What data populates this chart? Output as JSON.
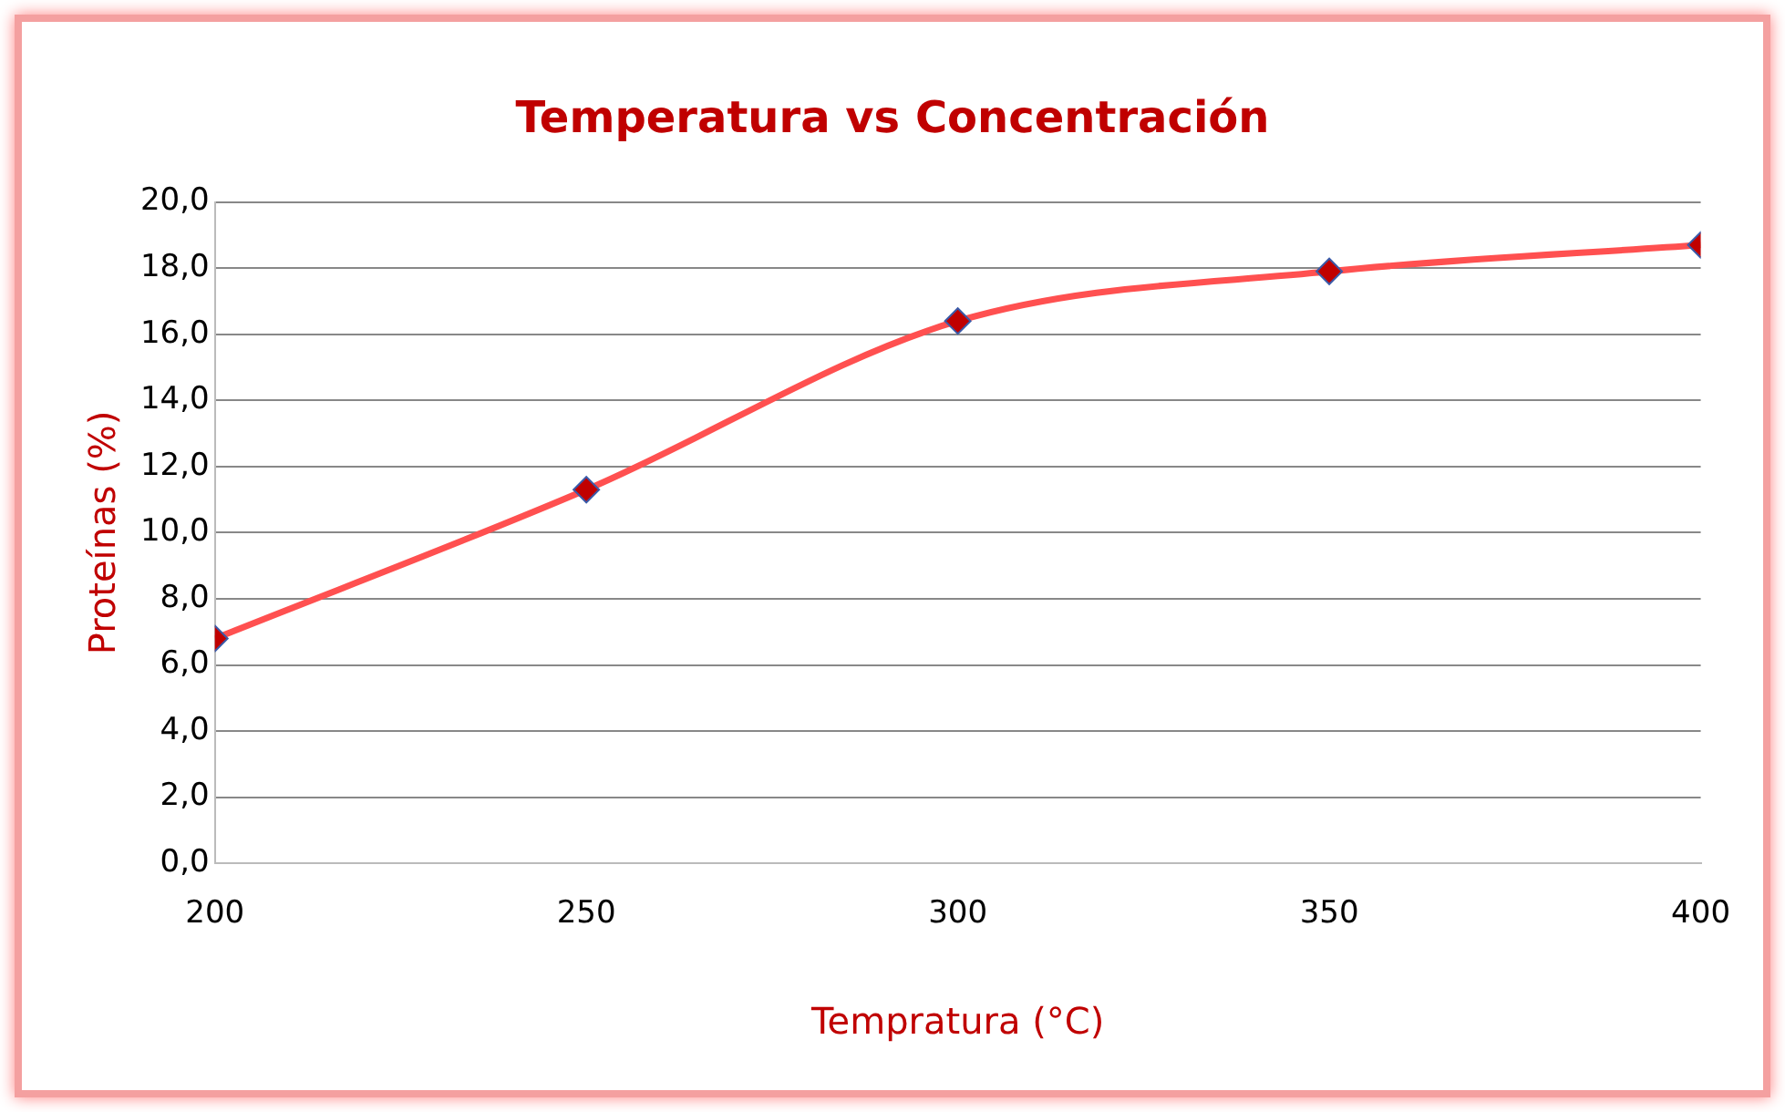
{
  "chart_data": {
    "type": "line",
    "title": "Temperatura vs Concentración",
    "xlabel": "Tempratura (°C)",
    "ylabel": "Proteínas (%)",
    "x": [
      200,
      250,
      300,
      350,
      400
    ],
    "series": [
      {
        "color": "#ff5050",
        "values": [
          6.8,
          11.3,
          16.4,
          17.9,
          18.7
        ]
      }
    ],
    "xlim": [
      200,
      400
    ],
    "xticks": [
      200,
      250,
      300,
      350,
      400
    ],
    "ylim": [
      0,
      20
    ],
    "yticks": [
      {
        "value": 0,
        "label": "0,0"
      },
      {
        "value": 2,
        "label": "2,0"
      },
      {
        "value": 4,
        "label": "4,0"
      },
      {
        "value": 6,
        "label": "6,0"
      },
      {
        "value": 8,
        "label": "8,0"
      },
      {
        "value": 10,
        "label": "10,0"
      },
      {
        "value": 12,
        "label": "12,0"
      },
      {
        "value": 14,
        "label": "14,0"
      },
      {
        "value": 16,
        "label": "16,0"
      },
      {
        "value": 18,
        "label": "18,0"
      },
      {
        "value": 20,
        "label": "20,0"
      }
    ],
    "grid": "y",
    "legend": false,
    "marker": "diamond",
    "line_style": "solid"
  }
}
